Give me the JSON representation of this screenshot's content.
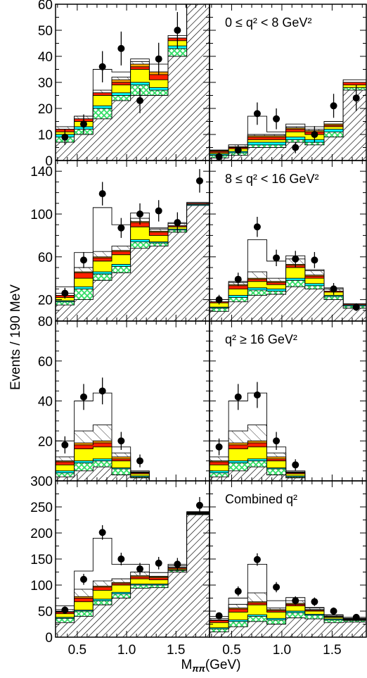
{
  "colors": {
    "hatch": "#000000",
    "yellow": "#ffff00",
    "orange": "#ffa500",
    "red": "#ff2000",
    "cyan": "#00ffff",
    "green": "#33dd66",
    "marker": "#000000"
  },
  "chart_data": {
    "type": "bar",
    "ylabel": "Events / 190 MeV",
    "xlabel": "Mππ(GeV)",
    "xlim": [
      0.28,
      1.84
    ],
    "xticks": [
      "0.5",
      "1.0",
      "1.5"
    ],
    "xtick_values": [
      0.5,
      1.0,
      1.5
    ],
    "bin_edges": [
      0.28,
      0.47,
      0.66,
      0.85,
      1.04,
      1.23,
      1.42,
      1.61,
      1.84
    ],
    "rows": [
      {
        "ylim": [
          0,
          60
        ],
        "yticks": [
          0,
          10,
          20,
          30,
          40,
          50,
          60
        ],
        "left": {
          "label": "",
          "hatched": [
            7,
            10,
            16,
            23,
            25,
            25,
            40,
            60
          ],
          "green": [
            9,
            12,
            20,
            25,
            29,
            27,
            43,
            60
          ],
          "cyan": [
            10,
            13,
            21,
            26,
            30,
            28,
            44,
            60
          ],
          "yellow": [
            11,
            15,
            25,
            29,
            35,
            31,
            46,
            60
          ],
          "red": [
            12,
            16,
            26,
            30,
            36,
            33,
            47,
            60
          ],
          "orange": [
            12,
            16,
            26,
            31,
            37,
            34,
            47,
            60
          ],
          "upper_hatch": [
            13,
            17,
            27,
            32,
            38,
            34,
            47,
            60
          ],
          "total": [
            13,
            17,
            35,
            34,
            39,
            37,
            48,
            60
          ],
          "points": [
            {
              "x": 0.375,
              "y": 9,
              "err": 3
            },
            {
              "x": 0.565,
              "y": 14,
              "err": 3.7
            },
            {
              "x": 0.755,
              "y": 36,
              "err": 6
            },
            {
              "x": 0.945,
              "y": 43,
              "err": 6.5
            },
            {
              "x": 1.135,
              "y": 23,
              "err": 4.8
            },
            {
              "x": 1.325,
              "y": 39,
              "err": 6.2
            },
            {
              "x": 1.515,
              "y": 50,
              "err": 7
            }
          ]
        },
        "right": {
          "label": "0 ≤ q² < 8 GeV²",
          "hatched": [
            1,
            2,
            5,
            5,
            7,
            6,
            9,
            27
          ],
          "green": [
            2,
            3,
            6,
            6,
            8,
            7,
            11,
            28
          ],
          "cyan": [
            2.5,
            3.5,
            7,
            7,
            9,
            8,
            12,
            28
          ],
          "yellow": [
            3,
            4.5,
            8,
            8,
            11,
            10,
            13,
            29
          ],
          "red": [
            3.5,
            5,
            9,
            9,
            12,
            11,
            13.5,
            30
          ],
          "orange": [
            3.8,
            5.3,
            9.5,
            9.5,
            12.5,
            11.5,
            14,
            30
          ],
          "upper_hatch": [
            4,
            6,
            10,
            10,
            13,
            12,
            14,
            30
          ],
          "total": [
            4,
            6,
            17,
            11,
            14,
            13,
            15,
            31
          ],
          "points": [
            {
              "x": 0.375,
              "y": 1.5,
              "err": 1.5
            },
            {
              "x": 0.565,
              "y": 4,
              "err": 2
            },
            {
              "x": 0.755,
              "y": 18,
              "err": 4.3
            },
            {
              "x": 0.945,
              "y": 16,
              "err": 4
            },
            {
              "x": 1.135,
              "y": 5,
              "err": 2.2
            },
            {
              "x": 1.325,
              "y": 10,
              "err": 3.2
            },
            {
              "x": 1.515,
              "y": 21,
              "err": 4.6
            },
            {
              "x": 1.74,
              "y": 24,
              "err": 5
            }
          ]
        }
      },
      {
        "ylim": [
          0,
          150
        ],
        "yticks": [
          20,
          60,
          100,
          140
        ],
        "minor": 10,
        "left": {
          "label": "",
          "hatched": [
            15,
            20,
            38,
            45,
            68,
            70,
            83,
            108
          ],
          "green": [
            18,
            30,
            44,
            51,
            74,
            73,
            85,
            108
          ],
          "cyan": [
            19,
            32,
            46,
            53,
            76,
            74,
            86,
            109
          ],
          "yellow": [
            22,
            40,
            56,
            62,
            88,
            80,
            88,
            109
          ],
          "red": [
            24,
            45,
            59,
            65,
            92,
            83,
            89,
            110
          ],
          "orange": [
            24,
            46,
            60,
            66,
            93,
            84,
            89,
            110
          ],
          "upper_hatch": [
            26,
            50,
            65,
            70,
            96,
            86,
            91,
            110
          ],
          "total": [
            32,
            64,
            106,
            90,
            101,
            87,
            92,
            111
          ],
          "points": [
            {
              "x": 0.375,
              "y": 26,
              "err": 5
            },
            {
              "x": 0.565,
              "y": 57,
              "err": 7.5
            },
            {
              "x": 0.755,
              "y": 119,
              "err": 11
            },
            {
              "x": 0.945,
              "y": 87,
              "err": 9.3
            },
            {
              "x": 1.135,
              "y": 100,
              "err": 10
            },
            {
              "x": 1.325,
              "y": 103,
              "err": 10
            },
            {
              "x": 1.515,
              "y": 92,
              "err": 9.6
            },
            {
              "x": 1.74,
              "y": 131,
              "err": 11
            }
          ]
        },
        "right": {
          "label": "8 ≤ q² < 16 GeV²",
          "hatched": [
            9,
            18,
            24,
            25,
            32,
            30,
            20,
            12
          ],
          "green": [
            12,
            22,
            29,
            28,
            38,
            33,
            23,
            14
          ],
          "cyan": [
            13,
            24,
            31,
            30,
            40,
            35,
            24,
            15
          ],
          "yellow": [
            17,
            30,
            37,
            34,
            50,
            40,
            27,
            15
          ],
          "red": [
            18,
            33,
            39,
            36,
            52,
            42,
            28,
            16
          ],
          "orange": [
            18,
            34,
            40,
            37,
            53,
            43,
            28,
            16
          ],
          "upper_hatch": [
            20,
            36,
            46,
            40,
            58,
            47,
            30,
            16
          ],
          "total": [
            20,
            37,
            76,
            56,
            61,
            48,
            31,
            16
          ],
          "points": [
            {
              "x": 0.375,
              "y": 20,
              "err": 4.5
            },
            {
              "x": 0.565,
              "y": 39,
              "err": 6.2
            },
            {
              "x": 0.755,
              "y": 88,
              "err": 9.4
            },
            {
              "x": 0.945,
              "y": 59,
              "err": 7.7
            },
            {
              "x": 1.135,
              "y": 58,
              "err": 7.6
            },
            {
              "x": 1.325,
              "y": 57,
              "err": 7.5
            },
            {
              "x": 1.515,
              "y": 30,
              "err": 5.5
            },
            {
              "x": 1.74,
              "y": 13,
              "err": 3.6
            }
          ]
        }
      },
      {
        "ylim": [
          0,
          80
        ],
        "yticks": [
          20,
          40,
          60,
          80
        ],
        "minor": 5,
        "left": {
          "label": "",
          "hatched": [
            2,
            5,
            7,
            3,
            1.5,
            0,
            0,
            0
          ],
          "green": [
            4,
            9,
            10,
            6,
            2,
            0,
            0,
            0
          ],
          "cyan": [
            5,
            10,
            11,
            6.5,
            2.5,
            0,
            0,
            0
          ],
          "yellow": [
            8,
            16,
            17,
            10,
            3.5,
            0,
            0,
            0
          ],
          "red": [
            9.5,
            18,
            19,
            11,
            4,
            0,
            0,
            0
          ],
          "orange": [
            10,
            19,
            20,
            12,
            4.2,
            0,
            0,
            0
          ],
          "upper_hatch": [
            12,
            25,
            28,
            14,
            4.5,
            0,
            0,
            0
          ],
          "total": [
            20,
            40,
            44,
            17,
            5,
            0,
            0,
            0
          ],
          "points": [
            {
              "x": 0.375,
              "y": 18,
              "err": 4.3
            },
            {
              "x": 0.565,
              "y": 42,
              "err": 6.5
            },
            {
              "x": 0.755,
              "y": 45,
              "err": 6.7
            },
            {
              "x": 0.945,
              "y": 20,
              "err": 4.5
            },
            {
              "x": 1.135,
              "y": 10,
              "err": 3.2
            }
          ]
        },
        "right": {
          "label": "q² ≥ 16 GeV²",
          "hatched": [
            2,
            5,
            7,
            3,
            1.5,
            0,
            0,
            0
          ],
          "green": [
            4,
            9,
            10,
            6,
            2,
            0,
            0,
            0
          ],
          "cyan": [
            5,
            10,
            11,
            6.5,
            2.5,
            0,
            0,
            0
          ],
          "yellow": [
            8,
            16,
            17,
            10,
            3.5,
            0,
            0,
            0
          ],
          "red": [
            9.5,
            18,
            19,
            11,
            4,
            0,
            0,
            0
          ],
          "orange": [
            10,
            19,
            20,
            12,
            4.2,
            0,
            0,
            0
          ],
          "upper_hatch": [
            12,
            25,
            28,
            14,
            4.5,
            0,
            0,
            0
          ],
          "total": [
            20,
            40,
            44,
            17,
            5,
            0,
            0,
            0
          ],
          "points": [
            {
              "x": 0.375,
              "y": 17,
              "err": 4.2
            },
            {
              "x": 0.565,
              "y": 42,
              "err": 6.5
            },
            {
              "x": 0.755,
              "y": 43,
              "err": 6.5
            },
            {
              "x": 0.945,
              "y": 20,
              "err": 4.5
            },
            {
              "x": 1.135,
              "y": 8,
              "err": 2.8
            }
          ]
        }
      },
      {
        "ylim": [
          0,
          300
        ],
        "yticks": [
          0,
          50,
          100,
          150,
          200,
          250,
          300
        ],
        "minor": 25,
        "left": {
          "label": "",
          "hatched": [
            28,
            40,
            62,
            75,
            94,
            95,
            125,
            235
          ],
          "green": [
            36,
            50,
            70,
            83,
            100,
            100,
            128,
            236
          ],
          "cyan": [
            38,
            52,
            73,
            86,
            102,
            102,
            129,
            237
          ],
          "yellow": [
            45,
            68,
            90,
            100,
            112,
            110,
            131,
            238
          ],
          "red": [
            48,
            75,
            96,
            103,
            116,
            114,
            133,
            239
          ],
          "orange": [
            49,
            78,
            98,
            105,
            118,
            116,
            134,
            239
          ],
          "upper_hatch": [
            53,
            92,
            108,
            112,
            125,
            117,
            137,
            240
          ],
          "total": [
            60,
            127,
            190,
            140,
            140,
            124,
            140,
            241
          ],
          "points": [
            {
              "x": 0.375,
              "y": 52,
              "err": 7
            },
            {
              "x": 0.565,
              "y": 111,
              "err": 10.5
            },
            {
              "x": 0.755,
              "y": 201,
              "err": 14
            },
            {
              "x": 0.945,
              "y": 150,
              "err": 12
            },
            {
              "x": 1.135,
              "y": 131,
              "err": 11.5
            },
            {
              "x": 1.325,
              "y": 142,
              "err": 12
            },
            {
              "x": 1.515,
              "y": 140,
              "err": 12
            },
            {
              "x": 1.74,
              "y": 253,
              "err": 16
            }
          ]
        },
        "right": {
          "label": "Combined q²",
          "hatched": [
            10,
            20,
            30,
            25,
            37,
            35,
            28,
            29
          ],
          "green": [
            16,
            30,
            40,
            33,
            47,
            42,
            33,
            32
          ],
          "cyan": [
            18,
            33,
            43,
            36,
            50,
            44,
            35,
            33
          ],
          "yellow": [
            28,
            48,
            62,
            48,
            60,
            50,
            38,
            34
          ],
          "red": [
            32,
            54,
            66,
            51,
            63,
            52,
            39,
            35
          ],
          "orange": [
            33,
            56,
            68,
            53,
            65,
            53,
            40,
            35
          ],
          "upper_hatch": [
            36,
            63,
            85,
            56,
            70,
            56,
            42,
            36
          ],
          "total": [
            40,
            75,
            140,
            70,
            76,
            57,
            43,
            38
          ],
          "points": [
            {
              "x": 0.375,
              "y": 41,
              "err": 6.4
            },
            {
              "x": 0.565,
              "y": 88,
              "err": 9.4
            },
            {
              "x": 0.755,
              "y": 149,
              "err": 12
            },
            {
              "x": 0.945,
              "y": 96,
              "err": 9.8
            },
            {
              "x": 1.135,
              "y": 70,
              "err": 8.4
            },
            {
              "x": 1.325,
              "y": 68,
              "err": 8.2
            },
            {
              "x": 1.515,
              "y": 50,
              "err": 7
            },
            {
              "x": 1.74,
              "y": 38,
              "err": 6.2
            }
          ]
        }
      }
    ]
  }
}
